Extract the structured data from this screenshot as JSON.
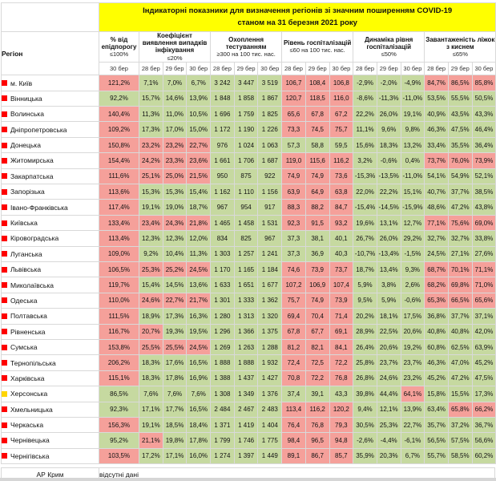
{
  "colors": {
    "ok": "#c6d9a0",
    "alert": "#f5a09a",
    "marker_red": "#fe0000",
    "marker_yellow": "#ffd500",
    "title_bg": "#ffff00",
    "grid": "#d9d9d9"
  },
  "title": {
    "line1": "Індикаторні показники для визначення регіонів зі значним поширенням COVID-19",
    "line2": "станом на 31 березня 2021 року"
  },
  "header": {
    "region_label": "Регіон",
    "groups": [
      {
        "label": "% від епідпорогу",
        "threshold": "≤100%",
        "dates": [
          "30 бер"
        ]
      },
      {
        "label": "Коефіцієнт виявлення випадків інфікування",
        "threshold": "≤20%",
        "dates": [
          "28 бер",
          "29 бер",
          "30 бер"
        ]
      },
      {
        "label": "Охоплення тестуванням",
        "threshold": "≥300 на 100 тис. нас.",
        "dates": [
          "28 бер",
          "29 бер",
          "30 бер"
        ]
      },
      {
        "label": "Рівень госпіталізацій",
        "threshold": "≤60 на 100 тис. нас.",
        "dates": [
          "28 бер",
          "29 бер",
          "30 бер"
        ]
      },
      {
        "label": "Динаміка рівня госпіталізацій",
        "threshold": "≤50%",
        "dates": [
          "28 бер",
          "29 бер",
          "30 бер"
        ]
      },
      {
        "label": "Завантаженість ліжок з киснем",
        "threshold": "≤65%",
        "dates": [
          "28 бер",
          "29 бер",
          "30 бер"
        ]
      }
    ]
  },
  "rows": [
    {
      "region": "м. Київ",
      "marker": "red",
      "status": "rggggggrrrgggrrr",
      "values": [
        "121,2%",
        "7,1%",
        "7,0%",
        "6,7%",
        "3 242",
        "3 447",
        "3 519",
        "106,7",
        "108,4",
        "106,8",
        "-2,9%",
        "-2,0%",
        "-4,9%",
        "84,7%",
        "86,5%",
        "85,8%"
      ]
    },
    {
      "region": "Вінницька",
      "marker": "red",
      "status": "gggggggrrrgggggg",
      "values": [
        "92,2%",
        "15,7%",
        "14,6%",
        "13,9%",
        "1 848",
        "1 858",
        "1 867",
        "120,7",
        "118,5",
        "116,0",
        "-8,6%",
        "-11,3%",
        "-11,0%",
        "53,5%",
        "55,5%",
        "50,5%"
      ]
    },
    {
      "region": "Волинська",
      "marker": "red",
      "status": "rggggggrrrgggggg",
      "values": [
        "140,4%",
        "11,3%",
        "11,0%",
        "10,5%",
        "1 696",
        "1 759",
        "1 825",
        "65,6",
        "67,8",
        "67,2",
        "22,2%",
        "26,0%",
        "19,1%",
        "40,9%",
        "43,5%",
        "43,3%"
      ]
    },
    {
      "region": "Дніпропетровська",
      "marker": "red",
      "status": "rggggggrrrgggggg",
      "values": [
        "109,2%",
        "17,3%",
        "17,0%",
        "15,0%",
        "1 172",
        "1 190",
        "1 226",
        "73,3",
        "74,5",
        "75,7",
        "11,1%",
        "9,6%",
        "9,8%",
        "46,3%",
        "47,5%",
        "46,4%"
      ]
    },
    {
      "region": "Донецька",
      "marker": "red",
      "status": "rrrrgggggggggggg",
      "values": [
        "150,8%",
        "23,2%",
        "23,2%",
        "22,7%",
        "976",
        "1 024",
        "1 063",
        "57,3",
        "58,8",
        "59,5",
        "15,6%",
        "18,3%",
        "13,2%",
        "33,4%",
        "35,5%",
        "36,4%"
      ]
    },
    {
      "region": "Житомирська",
      "marker": "red",
      "status": "rrrrgggrrrgggrrr",
      "values": [
        "154,4%",
        "24,2%",
        "23,3%",
        "23,6%",
        "1 661",
        "1 706",
        "1 687",
        "119,0",
        "115,6",
        "116,2",
        "3,2%",
        "-0,6%",
        "0,4%",
        "73,7%",
        "76,0%",
        "73,9%"
      ]
    },
    {
      "region": "Закарпатська",
      "marker": "red",
      "status": "rrrrgggrrrgggggg",
      "values": [
        "111,6%",
        "25,1%",
        "25,0%",
        "21,5%",
        "950",
        "875",
        "922",
        "74,9",
        "74,9",
        "73,6",
        "-15,3%",
        "-13,5%",
        "-11,0%",
        "54,1%",
        "54,9%",
        "52,1%"
      ]
    },
    {
      "region": "Запорізька",
      "marker": "red",
      "status": "rggggggrrrgggggg",
      "values": [
        "113,6%",
        "15,3%",
        "15,3%",
        "15,4%",
        "1 162",
        "1 110",
        "1 156",
        "63,9",
        "64,9",
        "63,8",
        "22,0%",
        "22,2%",
        "15,1%",
        "40,7%",
        "37,7%",
        "38,5%"
      ]
    },
    {
      "region": "Івано-Франківська",
      "marker": "red",
      "status": "rggggggrrrgggggg",
      "values": [
        "117,4%",
        "19,1%",
        "19,0%",
        "18,7%",
        "967",
        "954",
        "917",
        "88,3",
        "88,2",
        "84,7",
        "-15,4%",
        "-14,5%",
        "-15,9%",
        "48,6%",
        "47,2%",
        "43,8%"
      ]
    },
    {
      "region": "Київська",
      "marker": "red",
      "status": "rrrrgggrrrgggrrr",
      "values": [
        "133,4%",
        "23,4%",
        "24,3%",
        "21,8%",
        "1 465",
        "1 458",
        "1 531",
        "92,3",
        "91,5",
        "93,2",
        "19,6%",
        "13,1%",
        "12,7%",
        "77,1%",
        "75,6%",
        "69,0%"
      ]
    },
    {
      "region": "Кіровоградська",
      "marker": "red",
      "status": "rggggggggggggggg",
      "values": [
        "113,4%",
        "12,3%",
        "12,3%",
        "12,0%",
        "834",
        "825",
        "967",
        "37,3",
        "38,1",
        "40,1",
        "26,7%",
        "26,0%",
        "29,2%",
        "32,7%",
        "32,7%",
        "33,8%"
      ]
    },
    {
      "region": "Луганська",
      "marker": "red",
      "status": "rggggggggggggggg",
      "values": [
        "109,0%",
        "9,2%",
        "10,4%",
        "11,3%",
        "1 303",
        "1 257",
        "1 241",
        "37,3",
        "36,9",
        "40,3",
        "-10,7%",
        "-13,4%",
        "-1,5%",
        "24,5%",
        "27,1%",
        "27,6%"
      ]
    },
    {
      "region": "Львівська",
      "marker": "red",
      "status": "rrrrgggrrrgggrrr",
      "values": [
        "106,5%",
        "25,3%",
        "25,2%",
        "24,5%",
        "1 170",
        "1 165",
        "1 184",
        "74,6",
        "73,9",
        "73,7",
        "18,7%",
        "13,4%",
        "9,3%",
        "68,7%",
        "70,1%",
        "71,1%"
      ]
    },
    {
      "region": "Миколаївська",
      "marker": "red",
      "status": "rggggggrrrgggrrr",
      "values": [
        "119,7%",
        "15,4%",
        "14,5%",
        "13,6%",
        "1 633",
        "1 651",
        "1 677",
        "107,2",
        "106,9",
        "107,4",
        "5,9%",
        "3,8%",
        "2,6%",
        "68,2%",
        "69,8%",
        "71,0%"
      ]
    },
    {
      "region": "Одеська",
      "marker": "red",
      "status": "rrrrgggrrrgggrrr",
      "values": [
        "110,0%",
        "24,6%",
        "22,7%",
        "21,7%",
        "1 301",
        "1 333",
        "1 362",
        "75,7",
        "74,9",
        "73,9",
        "9,5%",
        "5,9%",
        "-0,6%",
        "65,3%",
        "66,5%",
        "65,6%"
      ]
    },
    {
      "region": "Полтавська",
      "marker": "red",
      "status": "rggggggrrrgggggg",
      "values": [
        "111,5%",
        "18,9%",
        "17,3%",
        "16,3%",
        "1 280",
        "1 313",
        "1 320",
        "69,4",
        "70,4",
        "71,4",
        "20,2%",
        "18,1%",
        "17,5%",
        "36,8%",
        "37,7%",
        "37,1%"
      ]
    },
    {
      "region": "Рівненська",
      "marker": "red",
      "status": "rrgggggrrrgggggg",
      "values": [
        "116,7%",
        "20,7%",
        "19,3%",
        "19,5%",
        "1 296",
        "1 366",
        "1 375",
        "67,8",
        "67,7",
        "69,1",
        "28,9%",
        "22,5%",
        "20,6%",
        "40,8%",
        "40,8%",
        "42,0%"
      ]
    },
    {
      "region": "Сумська",
      "marker": "red",
      "status": "rrrrgggrrrgggggg",
      "values": [
        "153,8%",
        "25,5%",
        "25,5%",
        "24,5%",
        "1 269",
        "1 263",
        "1 288",
        "81,2",
        "82,1",
        "84,1",
        "26,4%",
        "20,6%",
        "19,2%",
        "60,8%",
        "62,5%",
        "63,9%"
      ]
    },
    {
      "region": "Тернопільська",
      "marker": "red",
      "status": "rggggggrrrgggggg",
      "values": [
        "206,2%",
        "18,3%",
        "17,6%",
        "16,5%",
        "1 888",
        "1 888",
        "1 932",
        "72,4",
        "72,5",
        "72,2",
        "25,8%",
        "23,7%",
        "23,7%",
        "46,3%",
        "47,0%",
        "45,2%"
      ]
    },
    {
      "region": "Харківська",
      "marker": "red",
      "status": "rggggggrrrgggggg",
      "values": [
        "115,1%",
        "18,3%",
        "17,8%",
        "16,9%",
        "1 388",
        "1 437",
        "1 427",
        "70,8",
        "72,2",
        "76,8",
        "26,8%",
        "24,6%",
        "23,2%",
        "45,2%",
        "47,2%",
        "47,5%"
      ]
    },
    {
      "region": "Херсонська",
      "marker": "yellow",
      "status": "ggggggggggggrggg",
      "values": [
        "86,5%",
        "7,6%",
        "7,6%",
        "7,6%",
        "1 308",
        "1 349",
        "1 376",
        "37,4",
        "39,1",
        "43,3",
        "39,8%",
        "44,4%",
        "64,1%",
        "15,8%",
        "15,5%",
        "17,3%"
      ]
    },
    {
      "region": "Хмельницька",
      "marker": "red",
      "status": "gggggggrrrggggrr",
      "values": [
        "92,3%",
        "17,1%",
        "17,7%",
        "16,5%",
        "2 484",
        "2 467",
        "2 483",
        "113,4",
        "116,2",
        "120,2",
        "9,4%",
        "12,1%",
        "13,9%",
        "63,4%",
        "65,8%",
        "66,2%"
      ]
    },
    {
      "region": "Черкаська",
      "marker": "red",
      "status": "rggggggrrrgggggg",
      "values": [
        "156,3%",
        "19,1%",
        "18,5%",
        "18,4%",
        "1 371",
        "1 419",
        "1 404",
        "76,4",
        "76,8",
        "79,3",
        "30,5%",
        "25,3%",
        "22,7%",
        "35,7%",
        "37,2%",
        "36,7%"
      ]
    },
    {
      "region": "Чернівецька",
      "marker": "red",
      "status": "grgggggrrrgggggg",
      "values": [
        "95,2%",
        "21,1%",
        "19,8%",
        "17,8%",
        "1 799",
        "1 746",
        "1 775",
        "98,4",
        "96,5",
        "94,8",
        "-2,6%",
        "-4,4%",
        "-6,1%",
        "56,5%",
        "57,5%",
        "56,6%"
      ]
    },
    {
      "region": "Чернігівська",
      "marker": "red",
      "status": "rggggggrrrgggggg",
      "values": [
        "103,5%",
        "17,2%",
        "17,1%",
        "16,0%",
        "1 274",
        "1 397",
        "1 449",
        "89,1",
        "86,7",
        "85,7",
        "35,9%",
        "20,3%",
        "6,7%",
        "55,7%",
        "58,5%",
        "60,2%"
      ]
    }
  ],
  "footer": {
    "region": "АР Крим",
    "note": "відсутні дані"
  }
}
